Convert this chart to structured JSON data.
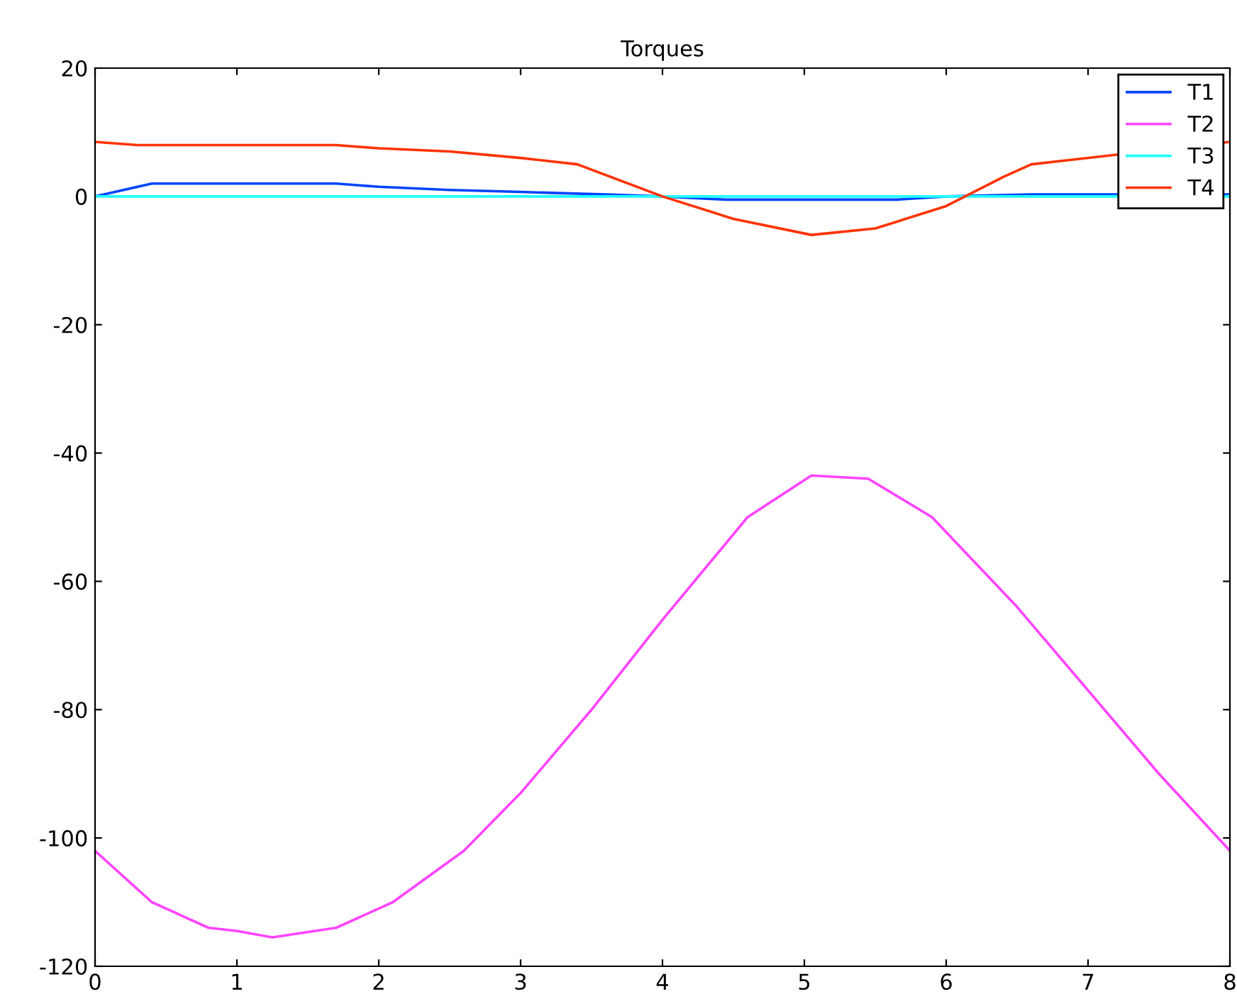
{
  "chart_data": {
    "type": "line",
    "title": "Torques",
    "xlim": [
      0,
      8
    ],
    "ylim": [
      -120,
      20
    ],
    "xticks": [
      0,
      1,
      2,
      3,
      4,
      5,
      6,
      7,
      8
    ],
    "yticks": [
      -120,
      -100,
      -80,
      -60,
      -40,
      -20,
      0,
      20
    ],
    "grid": false,
    "legend": "top right",
    "marker": "none",
    "line_style": "solid",
    "series": [
      {
        "name": "T1",
        "color": "#0044ff",
        "x": [
          0,
          0.4,
          1.7,
          2.0,
          2.5,
          3.0,
          3.6,
          4.0,
          4.45,
          5.65,
          6.0,
          6.6,
          8.0
        ],
        "values": [
          0,
          2,
          2,
          1.5,
          1,
          0.7,
          0.3,
          0,
          -0.5,
          -0.5,
          0,
          0.3,
          0.3
        ]
      },
      {
        "name": "T2",
        "color": "#ff44ff",
        "x": [
          0,
          0.4,
          0.8,
          1.0,
          1.25,
          1.7,
          2.1,
          2.6,
          3.0,
          3.5,
          4.0,
          4.6,
          5.05,
          5.45,
          5.9,
          6.5,
          7.0,
          7.5,
          8.0
        ],
        "values": [
          -102,
          -110,
          -114,
          -114.5,
          -115.5,
          -114,
          -110,
          -102,
          -93,
          -80,
          -66,
          -50,
          -43.5,
          -44,
          -50,
          -64,
          -77,
          -90,
          -102
        ]
      },
      {
        "name": "T3",
        "color": "#22ffff",
        "x": [
          0,
          8
        ],
        "values": [
          0,
          0
        ]
      },
      {
        "name": "T4",
        "color": "#ff3300",
        "x": [
          0,
          0.3,
          1.7,
          2.0,
          2.5,
          3.0,
          3.4,
          4.0,
          4.5,
          5.05,
          5.5,
          6.0,
          6.4,
          6.6,
          8.0
        ],
        "values": [
          8.5,
          8,
          8,
          7.5,
          7,
          6,
          5,
          0,
          -3.5,
          -6,
          -5,
          -1.5,
          3,
          5,
          8.5
        ]
      }
    ]
  }
}
